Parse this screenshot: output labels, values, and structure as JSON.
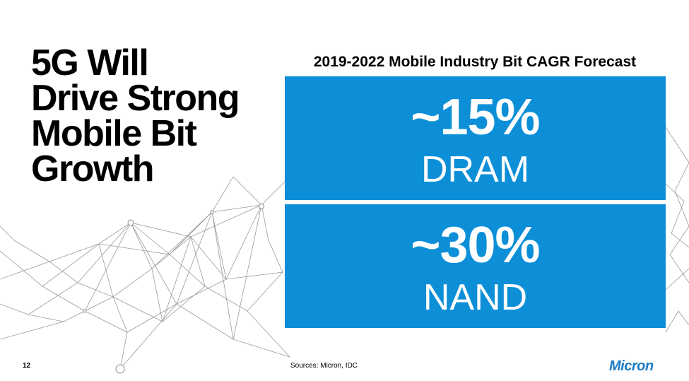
{
  "slide": {
    "title_lines": [
      "5G Will",
      "Drive Strong",
      "Mobile Bit",
      "Growth"
    ],
    "chart_heading": "2019-2022 Mobile Industry Bit CAGR Forecast",
    "stats": [
      {
        "value": "~15%",
        "label": "DRAM"
      },
      {
        "value": "~30%",
        "label": "NAND"
      }
    ],
    "accent_color": "#0d8fd8",
    "page_number": "12",
    "sources": "Sources: Micron, IDC",
    "logo_text": "Micron"
  }
}
